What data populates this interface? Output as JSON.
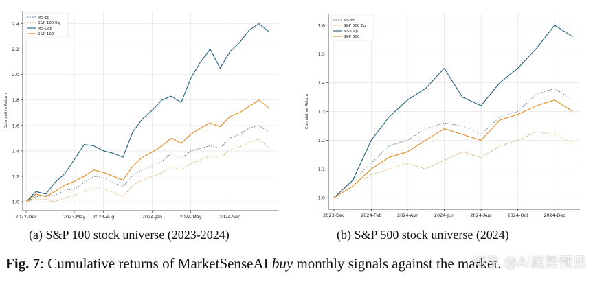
{
  "chart_data": [
    {
      "type": "line",
      "title": "",
      "xlabel": "",
      "ylabel": "Cumulative Return",
      "ylim": [
        0.93,
        2.5
      ],
      "yticks": [
        1.0,
        1.2,
        1.4,
        1.6,
        1.8,
        2.0,
        2.2,
        2.4
      ],
      "ytick_labels": [
        "1.0",
        "1.2",
        "1.4",
        "1.6",
        "1.8",
        "2.0",
        "2.2",
        "2.4"
      ],
      "xlim": [
        "2022-11-20",
        "2025-01-31"
      ],
      "xticks": [
        "2022-12-01",
        "2023-05-01",
        "2023-08-01",
        "2024-01-01",
        "2024-05-01",
        "2024-09-01"
      ],
      "xtick_labels": [
        "2022-Dec",
        "2023-May",
        "2023-Aug",
        "2024-Jan",
        "2024-May",
        "2024-Sep"
      ],
      "grid": true,
      "legend": "top-left",
      "x": [
        "2022-12-01",
        "2023-01-01",
        "2023-02-01",
        "2023-03-01",
        "2023-04-01",
        "2023-05-01",
        "2023-06-01",
        "2023-07-01",
        "2023-08-01",
        "2023-09-01",
        "2023-10-01",
        "2023-11-01",
        "2023-12-01",
        "2024-01-01",
        "2024-02-01",
        "2024-03-01",
        "2024-04-01",
        "2024-05-01",
        "2024-06-01",
        "2024-07-01",
        "2024-08-01",
        "2024-09-01",
        "2024-10-01",
        "2024-11-01",
        "2024-12-01",
        "2024-12-31"
      ],
      "series": [
        {
          "name": "MS-Eq",
          "color": "#4a6f8a",
          "dash": "1.5,2",
          "width": 0.9,
          "values": [
            1.0,
            1.04,
            1.05,
            1.05,
            1.09,
            1.1,
            1.15,
            1.2,
            1.19,
            1.15,
            1.12,
            1.21,
            1.25,
            1.28,
            1.32,
            1.38,
            1.34,
            1.4,
            1.42,
            1.44,
            1.42,
            1.5,
            1.53,
            1.58,
            1.6,
            1.55
          ]
        },
        {
          "name": "S&P 100 Eq",
          "color": "#e69b45",
          "dash": "1.5,2",
          "width": 0.9,
          "values": [
            1.0,
            1.02,
            1.02,
            1.0,
            1.03,
            1.05,
            1.08,
            1.12,
            1.1,
            1.07,
            1.04,
            1.13,
            1.17,
            1.2,
            1.23,
            1.28,
            1.25,
            1.3,
            1.33,
            1.36,
            1.34,
            1.41,
            1.43,
            1.47,
            1.49,
            1.43
          ]
        },
        {
          "name": "MS-Cap",
          "color": "#1f5e7e",
          "dash": "",
          "width": 1.1,
          "values": [
            1.0,
            1.08,
            1.06,
            1.15,
            1.22,
            1.33,
            1.45,
            1.44,
            1.4,
            1.38,
            1.35,
            1.55,
            1.65,
            1.72,
            1.8,
            1.83,
            1.78,
            1.97,
            2.1,
            2.2,
            2.05,
            2.18,
            2.25,
            2.35,
            2.4,
            2.34
          ]
        },
        {
          "name": "S&P 100",
          "color": "#e08a1e",
          "dash": "",
          "width": 1.1,
          "values": [
            1.0,
            1.06,
            1.04,
            1.08,
            1.13,
            1.16,
            1.2,
            1.25,
            1.23,
            1.2,
            1.17,
            1.28,
            1.35,
            1.39,
            1.44,
            1.5,
            1.46,
            1.53,
            1.58,
            1.62,
            1.59,
            1.67,
            1.7,
            1.75,
            1.8,
            1.74
          ]
        }
      ]
    },
    {
      "type": "line",
      "title": "",
      "xlabel": "",
      "ylabel": "Cumulative Return",
      "ylim": [
        0.96,
        1.64
      ],
      "yticks": [
        1.0,
        1.1,
        1.2,
        1.3,
        1.4,
        1.5,
        1.6
      ],
      "ytick_labels": [
        "1.0",
        "1.1",
        "1.2",
        "1.3",
        "1.4",
        "1.5",
        "1.6"
      ],
      "xlim": [
        "2023-11-22",
        "2025-01-12"
      ],
      "xticks": [
        "2023-12-01",
        "2024-02-01",
        "2024-04-01",
        "2024-06-01",
        "2024-08-01",
        "2024-10-01",
        "2024-12-01"
      ],
      "xtick_labels": [
        "2023-Dec",
        "2024-Feb",
        "2024-Apr",
        "2024-Jun",
        "2024-Aug",
        "2024-Oct",
        "2024-Dec"
      ],
      "grid": true,
      "legend": "top-left",
      "x": [
        "2023-12-01",
        "2024-01-01",
        "2024-02-01",
        "2024-03-01",
        "2024-04-01",
        "2024-05-01",
        "2024-06-01",
        "2024-07-01",
        "2024-08-01",
        "2024-09-01",
        "2024-10-01",
        "2024-11-01",
        "2024-12-01",
        "2024-12-31"
      ],
      "series": [
        {
          "name": "MS-Eq",
          "color": "#4a6f8a",
          "dash": "1.5,2",
          "width": 0.9,
          "values": [
            1.0,
            1.06,
            1.12,
            1.18,
            1.2,
            1.24,
            1.26,
            1.25,
            1.22,
            1.28,
            1.3,
            1.36,
            1.38,
            1.34
          ]
        },
        {
          "name": "S&P 500 Eq",
          "color": "#e69b45",
          "dash": "1.5,2",
          "width": 0.9,
          "values": [
            1.0,
            1.04,
            1.08,
            1.1,
            1.12,
            1.1,
            1.13,
            1.16,
            1.14,
            1.18,
            1.2,
            1.23,
            1.22,
            1.19
          ]
        },
        {
          "name": "MS-Cap",
          "color": "#1f5e7e",
          "dash": "",
          "width": 1.1,
          "values": [
            1.0,
            1.06,
            1.2,
            1.28,
            1.34,
            1.38,
            1.45,
            1.35,
            1.32,
            1.4,
            1.45,
            1.52,
            1.6,
            1.56
          ]
        },
        {
          "name": "S&P 500",
          "color": "#e08a1e",
          "dash": "",
          "width": 1.1,
          "values": [
            1.0,
            1.04,
            1.1,
            1.14,
            1.16,
            1.2,
            1.24,
            1.22,
            1.2,
            1.27,
            1.29,
            1.32,
            1.34,
            1.3
          ]
        }
      ]
    }
  ],
  "captions": {
    "a": "(a) S&P 100 stock universe (2023-2024)",
    "b": "(b) S&P 500 stock universe (2024)"
  },
  "figure_caption": {
    "label": "Fig. 7",
    "sep": ": ",
    "text_before": "Cumulative returns of MarketSenseAI ",
    "emphasis": "buy",
    "text_after": " monthly signals against the market."
  },
  "watermark": "知乎 @AI趋势预见"
}
